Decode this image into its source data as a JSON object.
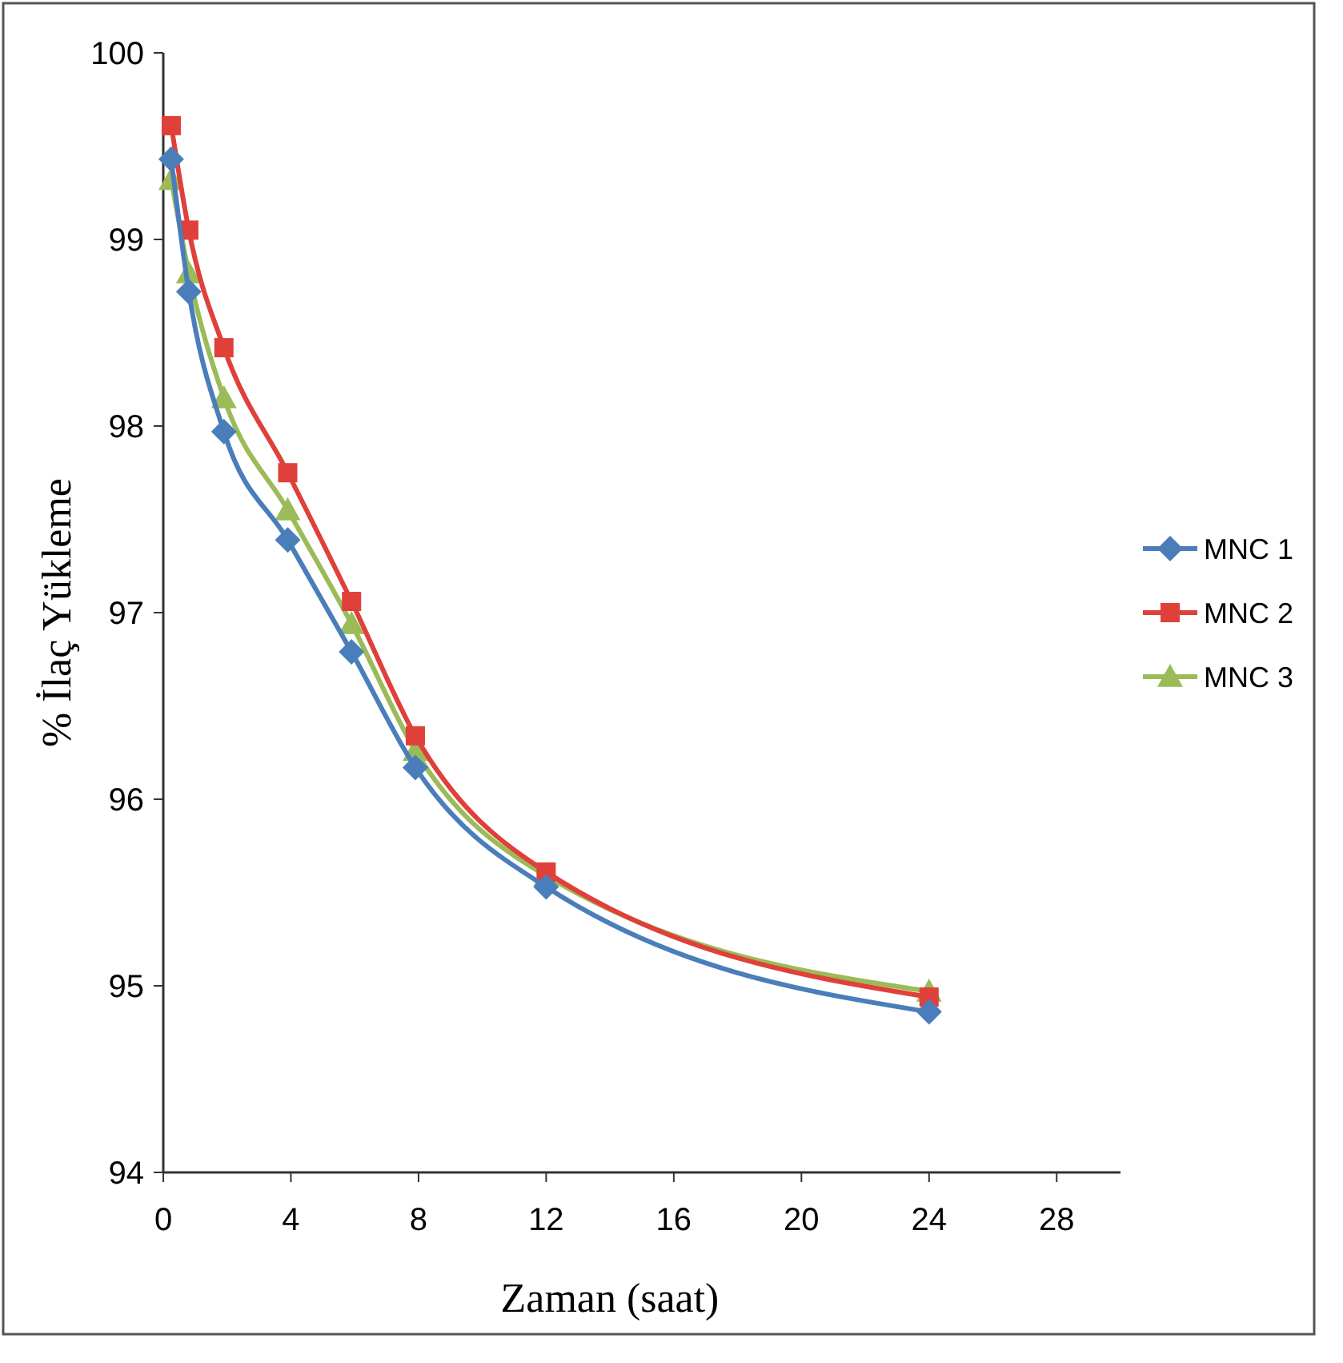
{
  "chart_data": {
    "type": "line",
    "xlabel": "Zaman (saat)",
    "ylabel": "% İlaç Yükleme",
    "x": [
      0.25,
      0.8,
      1.9,
      3.9,
      5.9,
      7.9,
      12,
      24
    ],
    "series": [
      {
        "name": "MNC 1",
        "color": "#4a7ebb",
        "values": [
          99.43,
          98.72,
          97.97,
          97.39,
          96.79,
          96.17,
          95.53,
          94.86
        ],
        "marker": "diamond"
      },
      {
        "name": "MNC 2",
        "color": "#e0403a",
        "values": [
          99.61,
          99.05,
          98.42,
          97.75,
          97.06,
          96.34,
          95.61,
          94.94
        ],
        "marker": "square"
      },
      {
        "name": "MNC 3",
        "color": "#9bbb59",
        "values": [
          99.32,
          98.82,
          98.15,
          97.55,
          96.94,
          96.26,
          95.59,
          94.97
        ],
        "marker": "triangle"
      }
    ],
    "xlim": [
      0,
      30
    ],
    "xticks": [
      0,
      4,
      8,
      12,
      16,
      20,
      24,
      28
    ],
    "ylim": [
      94,
      100
    ],
    "yticks": [
      94,
      95,
      96,
      97,
      98,
      99,
      100
    ],
    "grid": false,
    "legend": "right",
    "line_style": "solid"
  }
}
